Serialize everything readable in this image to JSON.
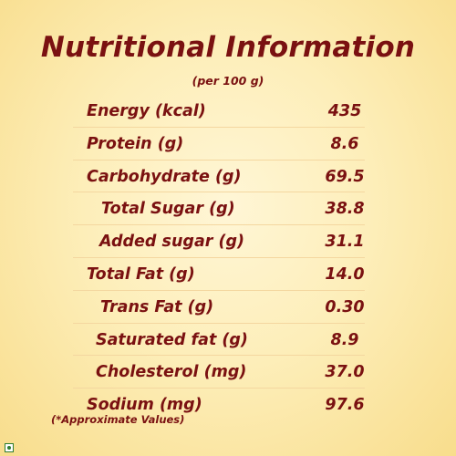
{
  "title": "Nutritional Information",
  "subtitle": "(per 100 g)",
  "rows": [
    {
      "label": "Energy (kcal)",
      "value": "435"
    },
    {
      "label": "Protein (g)",
      "value": "8.6"
    },
    {
      "label": "Carbohydrate (g)",
      "value": "69.5"
    },
    {
      "label": "Total Sugar (g)",
      "value": "38.8"
    },
    {
      "label": "Added sugar (g)",
      "value": "31.1"
    },
    {
      "label": "Total Fat (g)",
      "value": "14.0"
    },
    {
      "label": "Trans Fat (g)",
      "value": "0.30"
    },
    {
      "label": "Saturated fat (g)",
      "value": "8.9"
    },
    {
      "label": "Cholesterol (mg)",
      "value": "37.0"
    },
    {
      "label": "Sodium (mg)",
      "value": "97.6"
    }
  ],
  "footnote": "(*Approximate Values)",
  "colors": {
    "text": "#7a1111",
    "background": "#fdeeb9",
    "veg_mark": "#2e7d32"
  },
  "icons": {
    "veg_mark": "veg-mark-icon"
  }
}
